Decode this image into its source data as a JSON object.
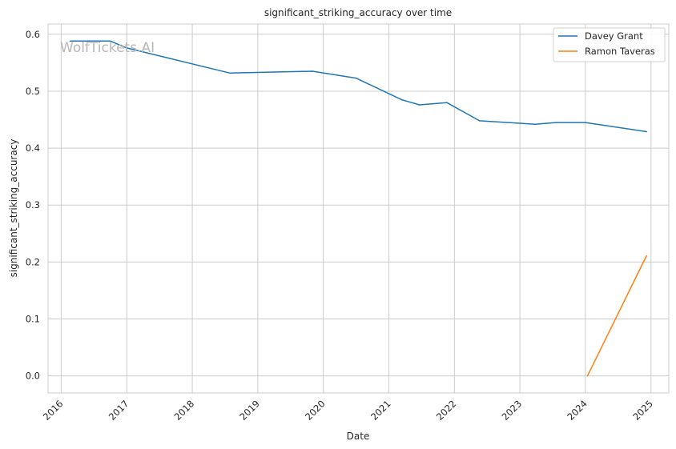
{
  "watermark": "WolfTickets.AI",
  "chart_data": {
    "type": "line",
    "title": "significant_striking_accuracy over time",
    "xlabel": "Date",
    "ylabel": "significant_striking_accuracy",
    "x_ticks": [
      "2016",
      "2017",
      "2018",
      "2019",
      "2020",
      "2021",
      "2022",
      "2023",
      "2024",
      "2025"
    ],
    "y_ticks": [
      "0.0",
      "0.1",
      "0.2",
      "0.3",
      "0.4",
      "0.5",
      "0.6"
    ],
    "xlim": [
      "2015-10-20",
      "2025-04-10"
    ],
    "ylim": [
      -0.03,
      0.618
    ],
    "grid": true,
    "legend_position": "top-right",
    "series": [
      {
        "name": "Davey Grant",
        "color": "#1f77b4",
        "points": [
          {
            "x": "2016-02-20",
            "y": 0.588
          },
          {
            "x": "2016-10-01",
            "y": 0.588
          },
          {
            "x": "2017-01-01",
            "y": 0.576
          },
          {
            "x": "2018-07-28",
            "y": 0.532
          },
          {
            "x": "2019-11-02",
            "y": 0.535
          },
          {
            "x": "2020-07-01",
            "y": 0.523
          },
          {
            "x": "2021-03-13",
            "y": 0.485
          },
          {
            "x": "2021-06-20",
            "y": 0.476
          },
          {
            "x": "2021-11-20",
            "y": 0.48
          },
          {
            "x": "2022-05-21",
            "y": 0.448
          },
          {
            "x": "2023-03-25",
            "y": 0.442
          },
          {
            "x": "2023-07-22",
            "y": 0.445
          },
          {
            "x": "2024-01-01",
            "y": 0.445
          },
          {
            "x": "2024-12-07",
            "y": 0.429
          }
        ]
      },
      {
        "name": "Ramon Taveras",
        "color": "#ff7f0e",
        "points": [
          {
            "x": "2024-01-13",
            "y": 0.0
          },
          {
            "x": "2024-12-07",
            "y": 0.211
          }
        ]
      }
    ]
  }
}
